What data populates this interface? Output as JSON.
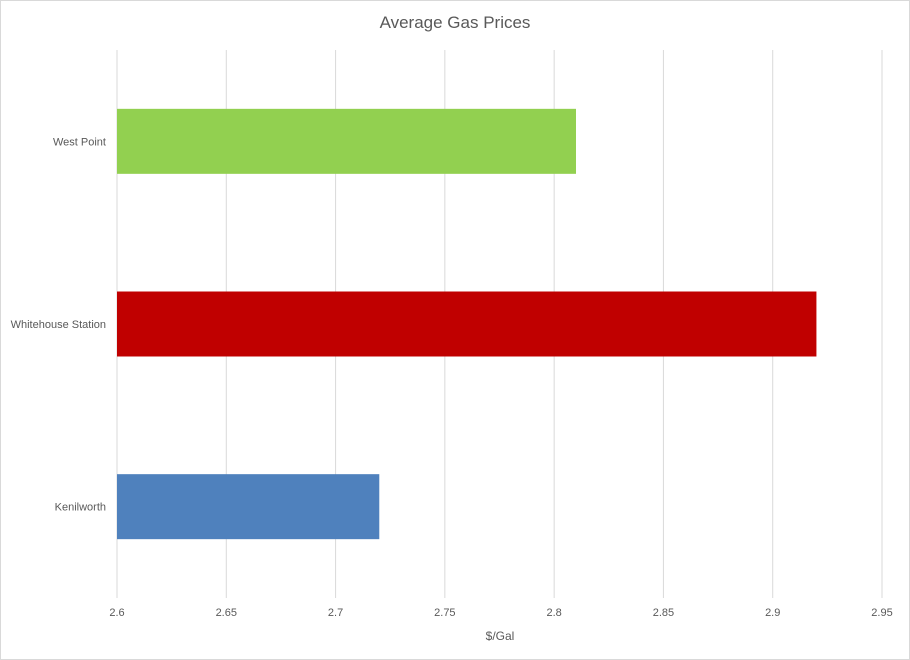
{
  "chart_data": {
    "type": "bar",
    "orientation": "horizontal",
    "title": "Average Gas Prices",
    "xlabel": "$/Gal",
    "ylabel": "",
    "categories": [
      "West Point",
      "Whitehouse Station",
      "Kenilworth"
    ],
    "values": [
      2.81,
      2.92,
      2.72
    ],
    "colors": [
      "#92d050",
      "#c00000",
      "#4f81bd"
    ],
    "xlim": [
      2.6,
      2.95
    ],
    "xticks": [
      "2.6",
      "2.65",
      "2.7",
      "2.75",
      "2.8",
      "2.85",
      "2.9",
      "2.95"
    ],
    "grid": "vertical",
    "legend": "none",
    "gridline_color": "#d9d9d9"
  }
}
